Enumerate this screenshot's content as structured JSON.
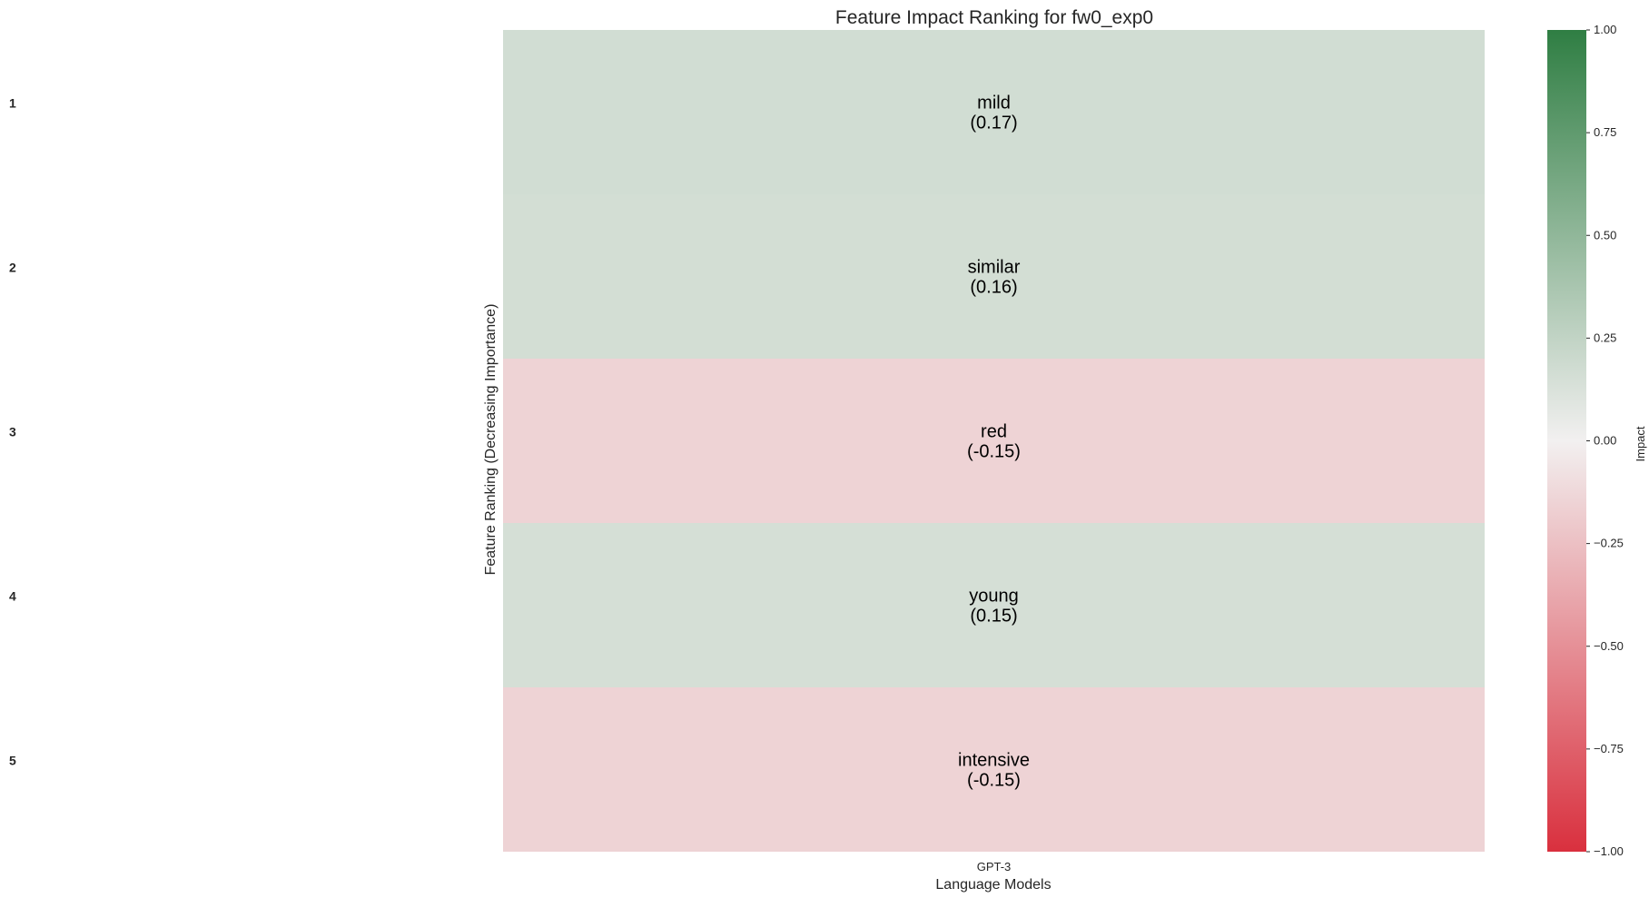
{
  "chart_data": {
    "type": "heatmap",
    "title": "Feature Impact Ranking for fw0_exp0",
    "xlabel": "Language Models",
    "ylabel": "Feature Ranking (Decreasing Importance)",
    "columns": [
      "GPT-3"
    ],
    "ranks": [
      "1",
      "2",
      "3",
      "4",
      "5"
    ],
    "features": [
      "mild",
      "similar",
      "red",
      "young",
      "intensive"
    ],
    "value_labels": [
      "(0.17)",
      "(0.16)",
      "(-0.15)",
      "(0.15)",
      "(-0.15)"
    ],
    "values": [
      0.17,
      0.16,
      -0.15,
      0.15,
      -0.15
    ],
    "colorbar": {
      "label": "Impact",
      "range": [
        -1.0,
        1.0
      ],
      "ticks": [
        "1.00",
        "0.75",
        "0.50",
        "0.25",
        "0.00",
        "−0.25",
        "−0.50",
        "−0.75",
        "−1.00"
      ],
      "tick_values": [
        1.0,
        0.75,
        0.5,
        0.25,
        0.0,
        -0.25,
        -0.5,
        -0.75,
        -1.0
      ],
      "color_low": "#d9303e",
      "color_mid": "#f2f0f0",
      "color_high": "#2f7e43"
    }
  }
}
